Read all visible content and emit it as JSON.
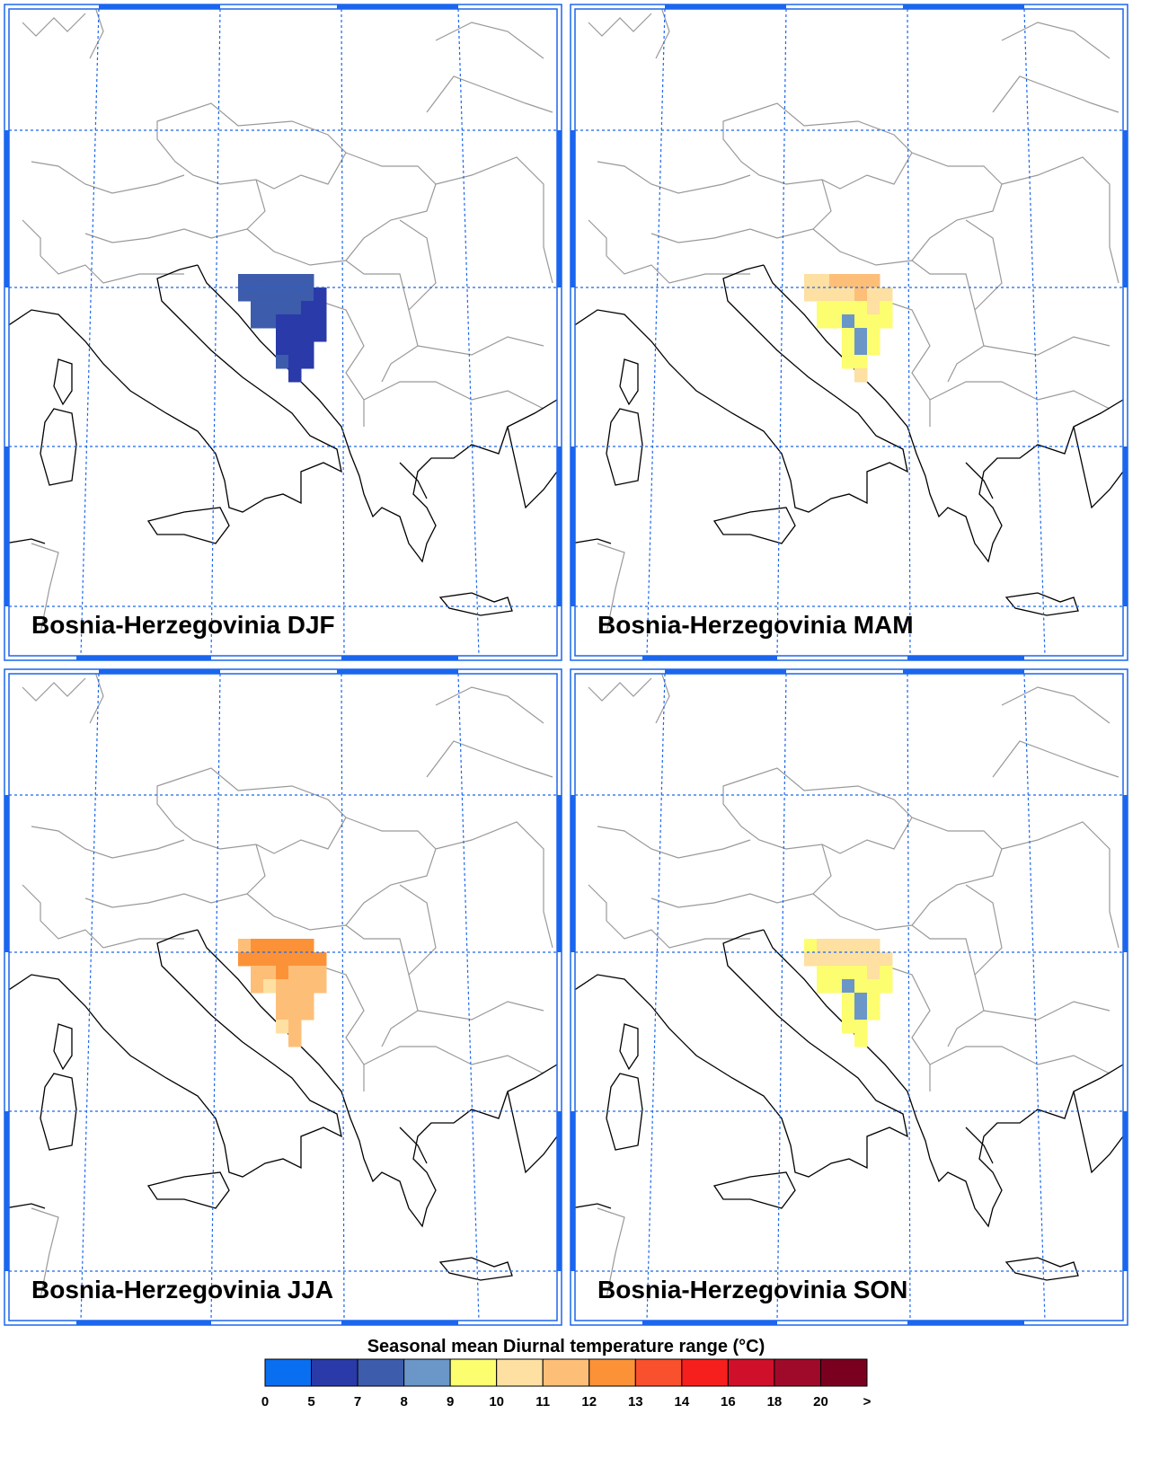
{
  "panels": [
    {
      "title": "Bosnia-Herzegovinia DJF",
      "cells": [
        [
          7.5,
          7.5,
          7.5,
          7.5,
          7.5,
          7.5,
          null
        ],
        [
          7.5,
          7.5,
          7.5,
          7.5,
          7.5,
          7.5,
          6.5
        ],
        [
          null,
          7.5,
          7.5,
          7.5,
          7.5,
          6.5,
          6.5
        ],
        [
          null,
          7.5,
          7.5,
          6.5,
          6.5,
          6.5,
          6.5
        ],
        [
          null,
          null,
          null,
          6.5,
          6.5,
          6.5,
          6.5
        ],
        [
          null,
          null,
          null,
          6.5,
          6.5,
          6.5,
          null
        ],
        [
          null,
          null,
          null,
          7.5,
          6.5,
          6.5,
          null
        ],
        [
          null,
          null,
          null,
          null,
          6.5,
          null,
          null
        ]
      ]
    },
    {
      "title": "Bosnia-Herzegovinia MAM",
      "cells": [
        [
          10.5,
          10.5,
          11.5,
          11.5,
          11.5,
          11.5,
          null
        ],
        [
          10.5,
          10.5,
          10.5,
          10.5,
          11.5,
          10.5,
          10.5
        ],
        [
          null,
          9.5,
          9.5,
          9.5,
          9.5,
          10.5,
          9.5
        ],
        [
          null,
          9.5,
          9.5,
          8.5,
          9.5,
          9.5,
          9.5
        ],
        [
          null,
          null,
          null,
          9.5,
          8.5,
          9.5,
          null
        ],
        [
          null,
          null,
          null,
          9.5,
          8.5,
          9.5,
          null
        ],
        [
          null,
          null,
          null,
          9.5,
          9.5,
          null,
          null
        ],
        [
          null,
          null,
          null,
          null,
          10.5,
          null,
          null
        ]
      ]
    },
    {
      "title": "Bosnia-Herzegovinia JJA",
      "cells": [
        [
          11.5,
          12.5,
          12.5,
          12.5,
          12.5,
          12.5,
          null
        ],
        [
          12.5,
          12.5,
          12.5,
          12.5,
          12.5,
          12.5,
          12.5
        ],
        [
          null,
          11.5,
          11.5,
          12.5,
          11.5,
          11.5,
          11.5
        ],
        [
          null,
          11.5,
          10.5,
          11.5,
          11.5,
          11.5,
          11.5
        ],
        [
          null,
          null,
          null,
          11.5,
          11.5,
          11.5,
          null
        ],
        [
          null,
          null,
          null,
          11.5,
          11.5,
          11.5,
          null
        ],
        [
          null,
          null,
          null,
          10.5,
          11.5,
          null,
          null
        ],
        [
          null,
          null,
          null,
          null,
          11.5,
          null,
          null
        ]
      ]
    },
    {
      "title": "Bosnia-Herzegovinia SON",
      "cells": [
        [
          9.5,
          10.5,
          10.5,
          10.5,
          10.5,
          10.5,
          null
        ],
        [
          10.5,
          10.5,
          10.5,
          10.5,
          10.5,
          10.5,
          10.5
        ],
        [
          null,
          9.5,
          9.5,
          9.5,
          9.5,
          10.5,
          9.5
        ],
        [
          null,
          9.5,
          9.5,
          8.5,
          9.5,
          9.5,
          9.5
        ],
        [
          null,
          null,
          null,
          9.5,
          8.5,
          9.5,
          null
        ],
        [
          null,
          null,
          null,
          9.5,
          8.5,
          9.5,
          null
        ],
        [
          null,
          null,
          null,
          9.5,
          9.5,
          null,
          null
        ],
        [
          null,
          null,
          null,
          null,
          9.5,
          null,
          null
        ]
      ]
    }
  ],
  "colorbar": {
    "title": "Seasonal mean Diurnal temperature range (°C)",
    "ticks": [
      0,
      5,
      7,
      8,
      9,
      10,
      11,
      12,
      13,
      14,
      16,
      18,
      20
    ],
    "over_label": ">",
    "colors": [
      "#0a6ef0",
      "#2a3aa8",
      "#3d5cab",
      "#6a96c8",
      "#fdfd70",
      "#fde0a2",
      "#fdbf78",
      "#fb9238",
      "#f9502e",
      "#f71e1e",
      "#d0102a",
      "#a00a2a",
      "#7a0020"
    ]
  }
}
